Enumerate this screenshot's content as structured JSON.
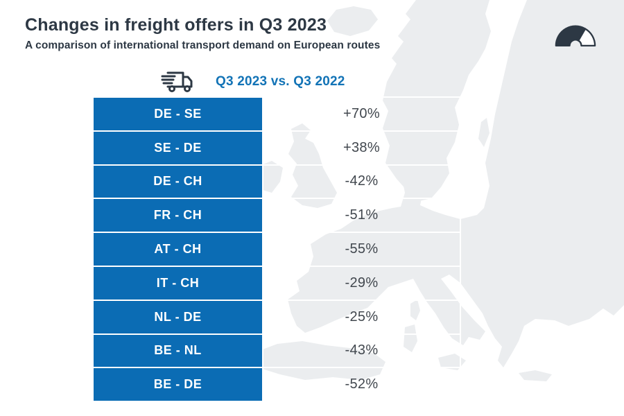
{
  "header": {
    "title": "Changes in freight offers in Q3 2023",
    "subtitle": "A comparison of international transport demand on European routes"
  },
  "legend": {
    "label": "Q3 2023 vs. Q3 2022"
  },
  "icons": {
    "truck": "delivery-truck-icon",
    "gauge": "speedometer-gauge-icon",
    "map": "europe-map-silhouette"
  },
  "colors": {
    "ink": "#2d3844",
    "accent": "#0b6cb4",
    "legend_blue": "#1273b6",
    "value_ink": "#41474e",
    "map": "#ebedef",
    "divider": "#ffffff"
  },
  "chart_data": {
    "type": "table",
    "title": "Changes in freight offers in Q3 2023",
    "subtitle": "A comparison of international transport demand on European routes",
    "legend_label": "Q3 2023 vs. Q3 2022",
    "unit": "%",
    "categories": [
      "DE - SE",
      "SE - DE",
      "DE - CH",
      "FR - CH",
      "AT - CH",
      "IT - CH",
      "NL - DE",
      "BE - NL",
      "BE - DE"
    ],
    "values": [
      70,
      38,
      -42,
      -51,
      -55,
      -29,
      -25,
      -43,
      -52
    ],
    "value_labels": [
      "+70%",
      "+38%",
      "-42%",
      "-51%",
      "-55%",
      "-29%",
      "-25%",
      "-43%",
      "-52%"
    ],
    "layout": {
      "legend_position": "top",
      "grid": false,
      "background": "europe-map-silhouette"
    }
  }
}
